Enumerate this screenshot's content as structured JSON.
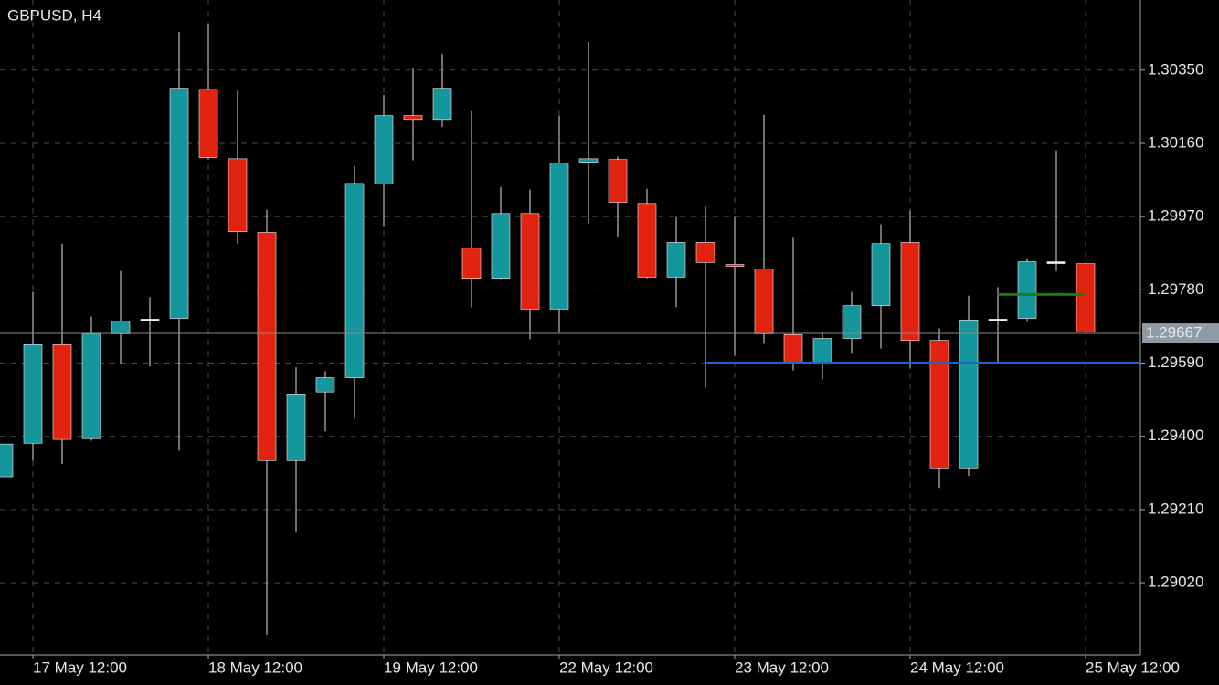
{
  "chart_data": {
    "type": "candlestick",
    "title": "GBPUSD, H4",
    "categories": [
      null,
      "17 May 12:00",
      null,
      null,
      null,
      null,
      null,
      "18 May 12:00",
      null,
      null,
      null,
      null,
      null,
      "19 May 12:00",
      null,
      null,
      null,
      null,
      null,
      "22 May 12:00",
      null,
      null,
      null,
      null,
      null,
      "23 May 12:00",
      null,
      null,
      null,
      null,
      null,
      "24 May 12:00",
      null,
      null,
      null,
      null,
      null,
      "25 May 12:00"
    ],
    "open": [
      1.29295,
      1.29382,
      1.29638,
      1.29394,
      1.29666,
      1.29704,
      1.29706,
      1.303,
      1.3012,
      1.29929,
      1.29337,
      1.29515,
      1.29552,
      1.30054,
      1.30232,
      1.30222,
      1.29888,
      1.2981,
      1.29978,
      1.2973,
      1.30111,
      1.30118,
      1.30004,
      1.29813,
      1.29903,
      1.29846,
      1.29834,
      1.29664,
      1.29588,
      1.29654,
      1.29739,
      1.29903,
      1.29649,
      1.29318,
      1.29704,
      1.29706,
      1.29853,
      1.29848
    ],
    "high": [
      1.2938,
      1.29775,
      1.299,
      1.29711,
      1.29829,
      1.29761,
      1.30449,
      1.3047,
      1.30298,
      1.29988,
      1.29579,
      1.29569,
      1.30101,
      1.30286,
      1.30355,
      1.30392,
      1.30246,
      1.30047,
      1.3004,
      1.30232,
      1.30423,
      1.30125,
      1.30042,
      1.29969,
      1.29995,
      1.29969,
      1.30234,
      1.29915,
      1.29671,
      1.29775,
      1.2995,
      1.29986,
      1.2968,
      1.29765,
      1.29787,
      1.2986,
      1.30142,
      1.29848
    ],
    "low": [
      1.29295,
      1.29337,
      1.29328,
      1.29389,
      1.29588,
      1.29581,
      1.29363,
      1.30118,
      1.299,
      1.28885,
      1.2915,
      1.29413,
      1.29446,
      1.29945,
      1.30116,
      1.30203,
      1.29735,
      1.29806,
      1.29652,
      1.29671,
      1.29952,
      1.29919,
      1.2981,
      1.29735,
      1.29526,
      1.29609,
      1.2964,
      1.29571,
      1.29548,
      1.29614,
      1.29628,
      1.29576,
      1.29266,
      1.29297,
      1.2959,
      1.29697,
      1.29829,
      1.29666
    ],
    "close": [
      1.2938,
      1.29638,
      1.29392,
      1.29666,
      1.29699,
      1.29704,
      1.30303,
      1.30123,
      1.29931,
      1.29337,
      1.2951,
      1.29552,
      1.30056,
      1.30232,
      1.30222,
      1.30303,
      1.2981,
      1.29978,
      1.2973,
      1.30109,
      1.3012,
      1.30007,
      1.29813,
      1.29903,
      1.29851,
      1.29841,
      1.29666,
      1.29593,
      1.29654,
      1.29739,
      1.299,
      1.29649,
      1.29318,
      1.29702,
      1.29704,
      1.29853,
      1.29853,
      1.29671
    ],
    "up_color": "#14969c",
    "down_color": "#e2230f",
    "doji_color": "#f0f0f0",
    "ylim": [
      1.28833,
      1.30532
    ],
    "yticks": [
      {
        "value": 1.2902,
        "label": "1.29020"
      },
      {
        "value": 1.2921,
        "label": "1.29210"
      },
      {
        "value": 1.294,
        "label": "1.29400"
      },
      {
        "value": 1.2959,
        "label": "1.29590"
      },
      {
        "value": 1.2978,
        "label": "1.29780"
      },
      {
        "value": 1.2997,
        "label": "1.29970"
      },
      {
        "value": 1.3016,
        "label": "1.30160"
      },
      {
        "value": 1.3035,
        "label": "1.30350"
      }
    ],
    "grid": true,
    "last_price": 1.29667,
    "levels": [
      {
        "value": 1.2959,
        "color": "#1e63c8"
      },
      {
        "value": 1.29768,
        "color": "#1a7a1a"
      }
    ]
  }
}
